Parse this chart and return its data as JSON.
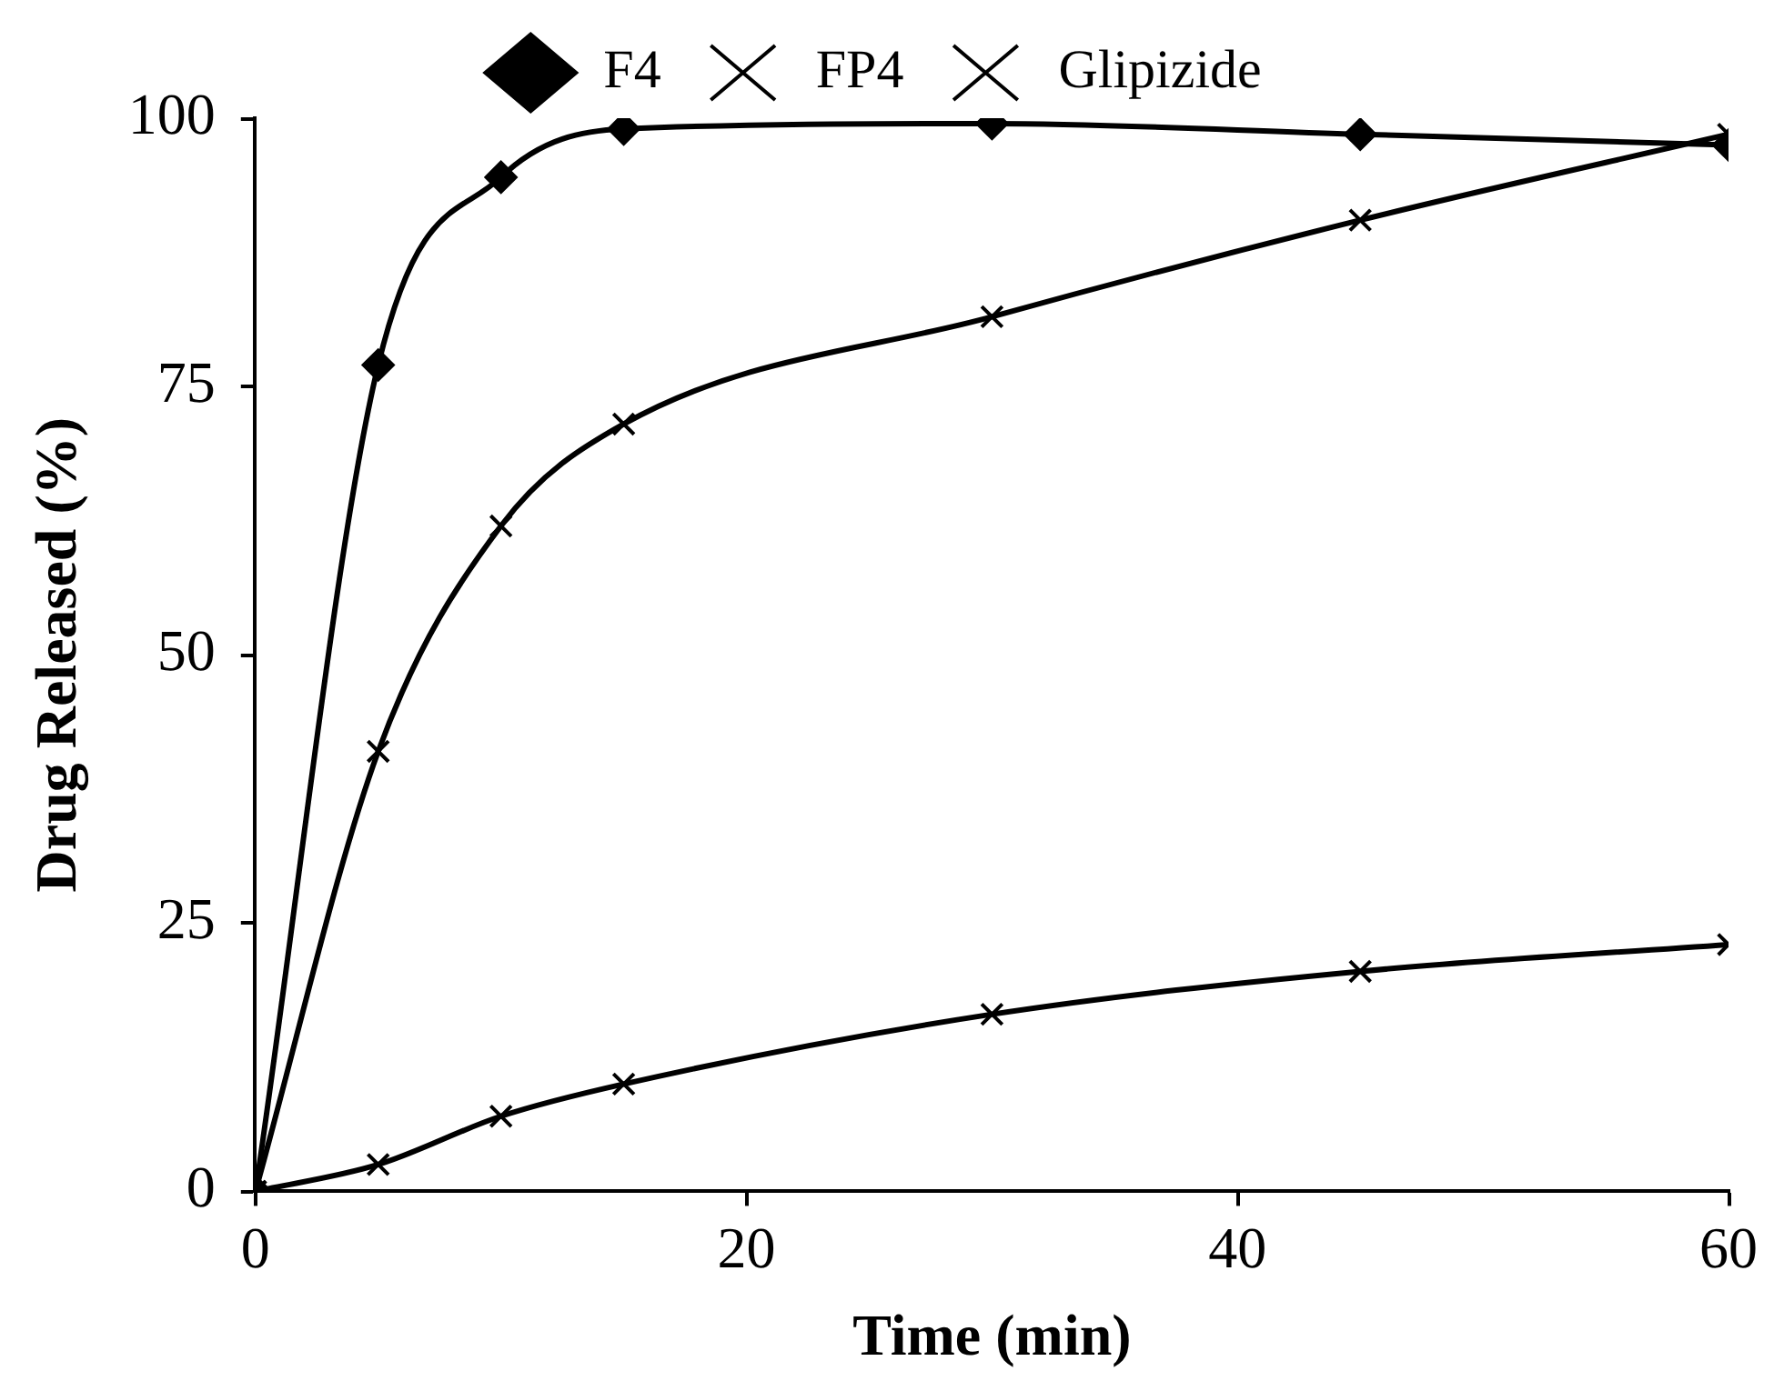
{
  "chart_data": {
    "type": "line",
    "xlabel": "Time (min)",
    "ylabel": "Drug Released (%)",
    "xlim": [
      0,
      60
    ],
    "xticks": [
      0,
      20,
      40,
      60
    ],
    "ylim": [
      0,
      100
    ],
    "yticks": [
      0,
      25,
      50,
      75,
      100
    ],
    "grid": false,
    "legend": "top",
    "series": [
      {
        "name": "F4",
        "color": "#000000",
        "marker": "diamond",
        "x": [
          0,
          5,
          10,
          15,
          30,
          45,
          60
        ],
        "values": [
          0,
          77,
          94.5,
          99,
          99.5,
          98.5,
          97.5
        ]
      },
      {
        "name": "FP4",
        "color": "#000000",
        "marker": "cross",
        "x": [
          0,
          5,
          10,
          15,
          30,
          45,
          60
        ],
        "values": [
          0,
          41,
          62,
          71.5,
          81.5,
          90.5,
          98.5
        ]
      },
      {
        "name": "Glipizide",
        "color": "#000000",
        "marker": "cross",
        "x": [
          0,
          5,
          10,
          15,
          30,
          45,
          60
        ],
        "values": [
          0,
          2.5,
          7,
          10,
          16.5,
          20.5,
          23
        ]
      }
    ]
  }
}
